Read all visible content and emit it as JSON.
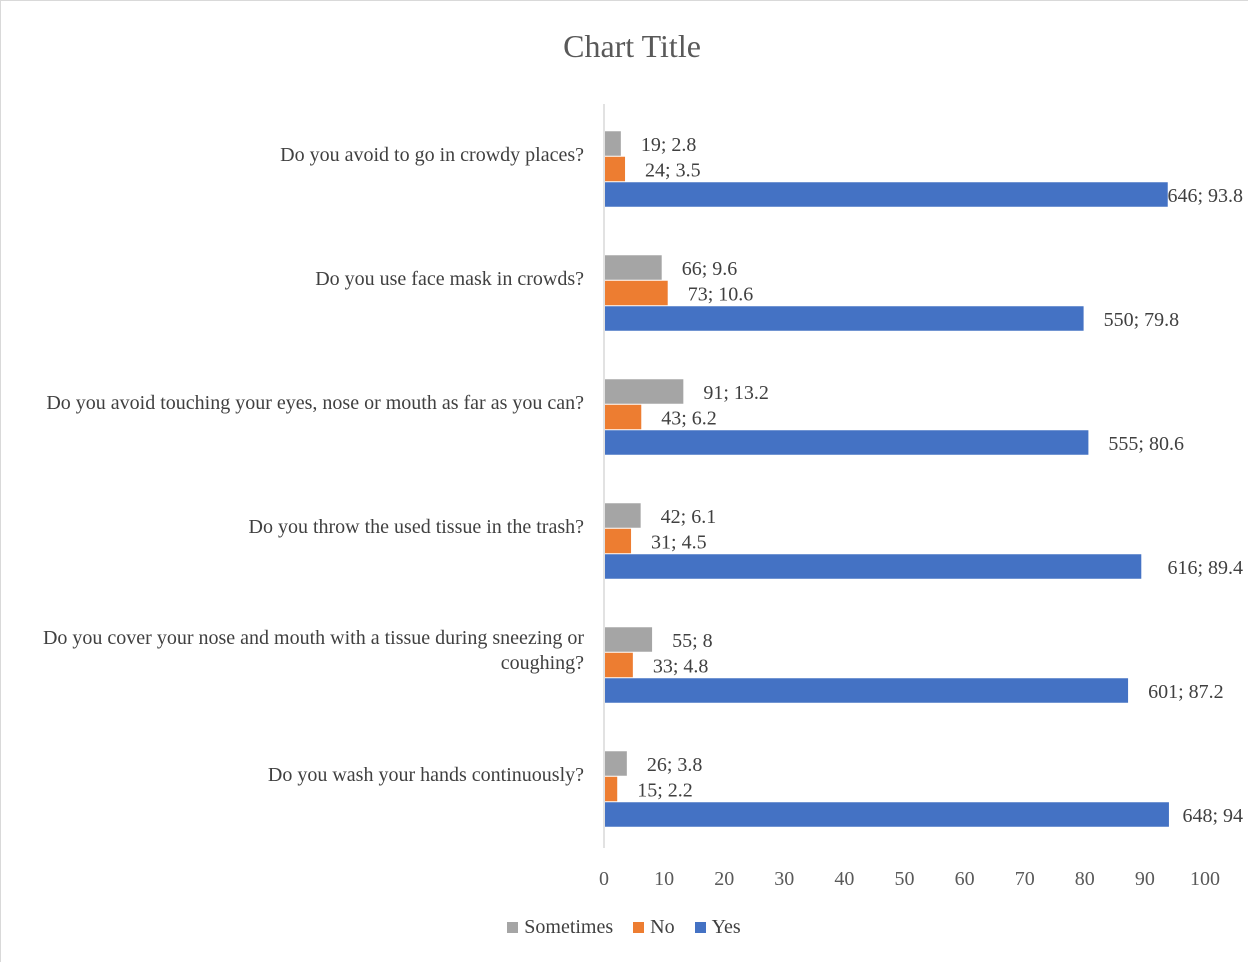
{
  "chart_data": {
    "type": "bar",
    "orientation": "horizontal",
    "title": "Chart Title",
    "categories": [
      "Do you avoid to go in crowdy places?",
      "Do you use face mask in crowds?",
      "Do you avoid touching your eyes, nose or mouth as far as you can?",
      "Do you throw the used tissue in the trash?",
      "Do you cover your nose and mouth with a tissue during sneezing or coughing?",
      "Do you wash your hands continuously?"
    ],
    "series": [
      {
        "name": "Sometimes",
        "color": "#a5a5a5",
        "values": [
          2.8,
          9.6,
          13.2,
          6.1,
          8,
          3.8
        ],
        "labels": [
          "19; 2.8",
          "66; 9.6",
          "91; 13.2",
          "42; 6.1",
          "55; 8",
          "26; 3.8"
        ]
      },
      {
        "name": "No",
        "color": "#ed7d31",
        "values": [
          3.5,
          10.6,
          6.2,
          4.5,
          4.8,
          2.2
        ],
        "labels": [
          "24; 3.5",
          "73; 10.6",
          "43; 6.2",
          "31; 4.5",
          "33; 4.8",
          "15; 2.2"
        ]
      },
      {
        "name": "Yes",
        "color": "#4472c4",
        "values": [
          93.8,
          79.8,
          80.6,
          89.4,
          87.2,
          94
        ],
        "labels": [
          "646; 93.8",
          "550; 79.8",
          "555; 80.6",
          "616; 89.4",
          "601; 87.2",
          "648; 94"
        ]
      }
    ],
    "xlim": [
      0,
      100
    ],
    "xticks": [
      "0",
      "10",
      "20",
      "30",
      "40",
      "50",
      "60",
      "70",
      "80",
      "90",
      "100"
    ],
    "grid": false,
    "legend_position": "bottom"
  }
}
